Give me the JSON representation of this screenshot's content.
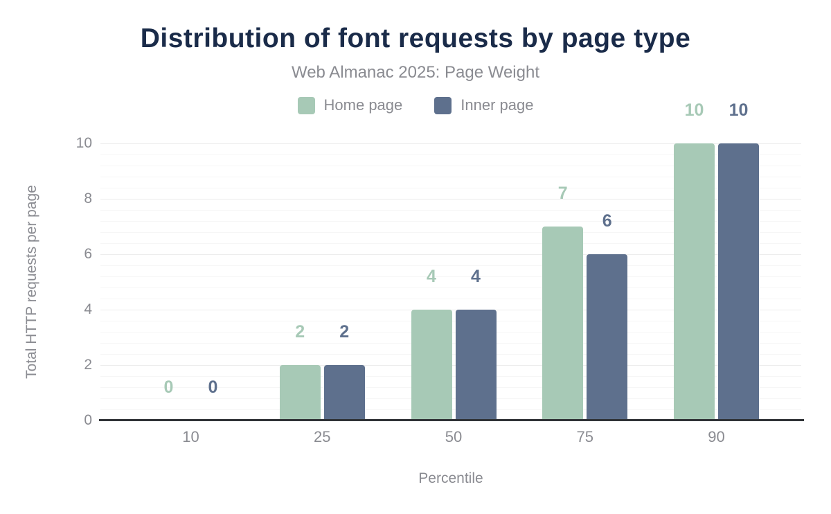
{
  "figure": {
    "title": "Distribution of font requests by page type",
    "subtitle": "Web Almanac 2025: Page Weight"
  },
  "chart_data": {
    "type": "bar",
    "title": "Distribution of font requests by page type",
    "subtitle": "Web Almanac 2025: Page Weight",
    "categories": [
      "10",
      "25",
      "50",
      "75",
      "90"
    ],
    "series": [
      {
        "name": "Home page",
        "color": "#a7c9b6",
        "values": [
          0,
          2,
          4,
          7,
          10
        ]
      },
      {
        "name": "Inner page",
        "color": "#5e708d",
        "values": [
          0,
          2,
          4,
          6,
          10
        ]
      }
    ],
    "xlabel": "Percentile",
    "ylabel": "Total HTTP requests per page",
    "ylim": [
      0,
      10
    ],
    "yticks": [
      0,
      2,
      4,
      6,
      8,
      10
    ],
    "ytick_interval": 2,
    "minor_tick_interval": 0.4,
    "grid": true,
    "legend_position": "top",
    "data_labels": true
  },
  "colors": {
    "title_text": "#1a2b49",
    "muted_text": "#8a8b91",
    "axis_line": "#303236",
    "grid_major": "#ececec",
    "grid_minor": "#f6f6f6",
    "background": "#ffffff"
  }
}
